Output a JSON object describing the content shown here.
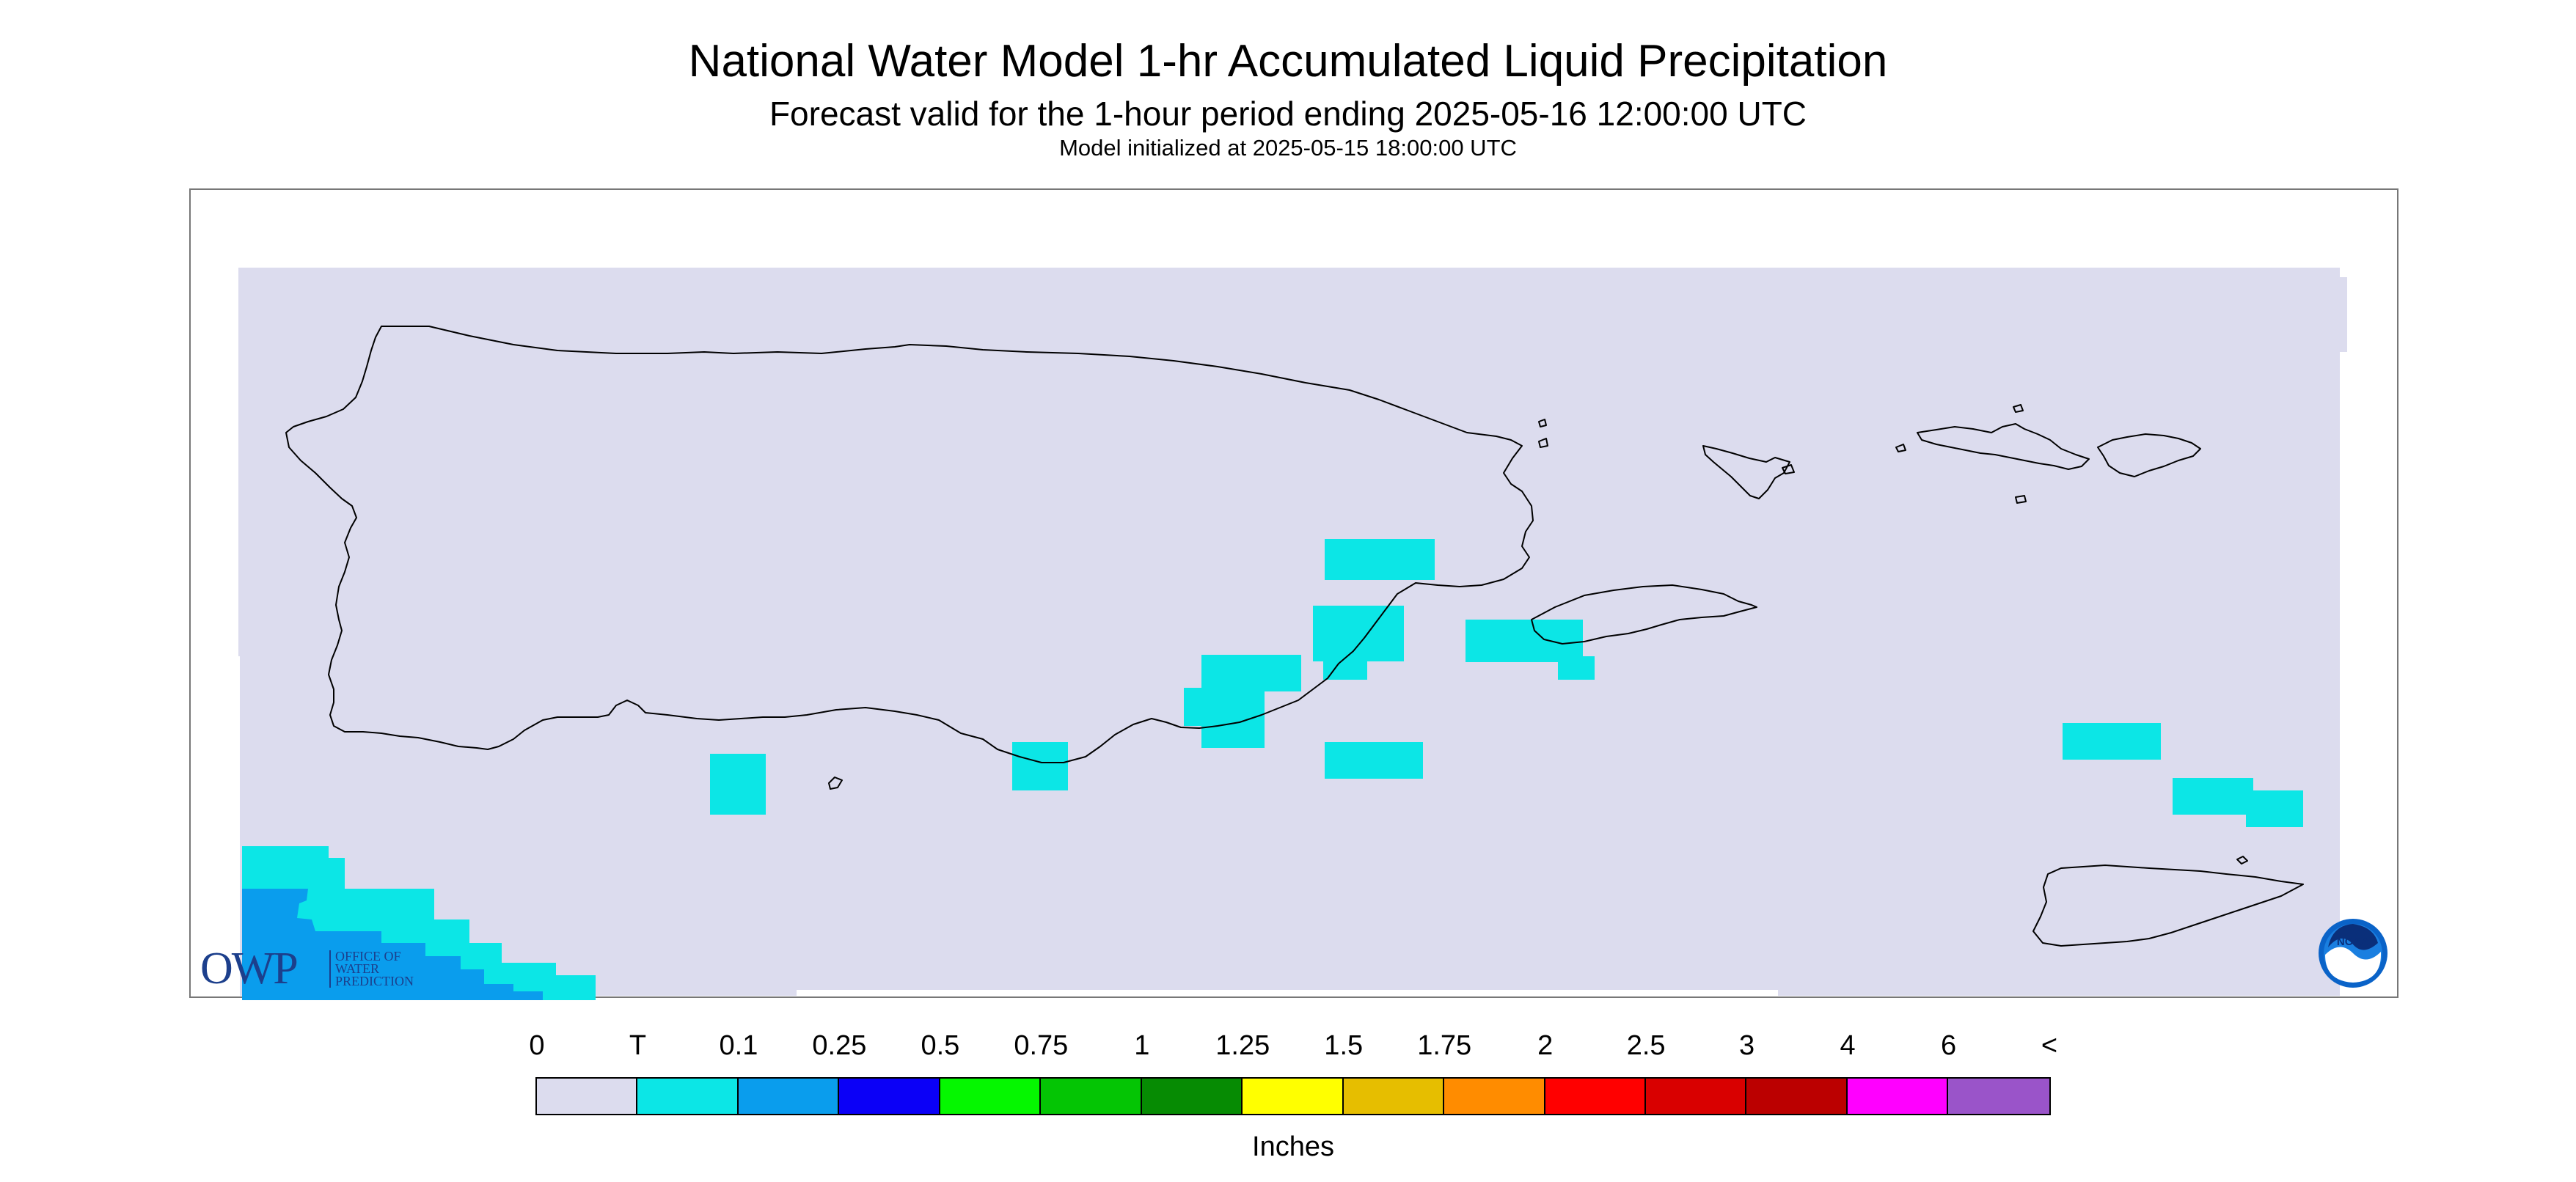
{
  "header": {
    "title": "National Water Model 1-hr Accumulated Liquid Precipitation",
    "subtitle": "Forecast valid for the 1-hour period ending 2025-05-16 12:00:00 UTC",
    "init_line": "Model initialized at 2025-05-15 18:00:00 UTC"
  },
  "map": {
    "background_color": "#dcdcee",
    "coastline_color": "#000000",
    "regions": [
      "Puerto Rico",
      "Vieques",
      "Culebra",
      "U.S. Virgin Islands (St. Thomas, St. John)",
      "St. Croix"
    ]
  },
  "logos": {
    "owp": {
      "letters": "OWP",
      "lines": [
        "OFFICE OF",
        "WATER",
        "PREDICTION"
      ]
    },
    "noaa": {
      "text": "NOAA"
    }
  },
  "legend": {
    "labels": [
      "0",
      "T",
      "0.1",
      "0.25",
      "0.5",
      "0.75",
      "1",
      "1.25",
      "1.5",
      "1.75",
      "2",
      "2.5",
      "3",
      "4",
      "6",
      "<"
    ],
    "colors": [
      "#dcdcee",
      "#0ce6e6",
      "#0a9ded",
      "#0b00f7",
      "#05f700",
      "#04c504",
      "#068b03",
      "#ffff00",
      "#e6be00",
      "#ff8c00",
      "#ff0000",
      "#d90000",
      "#bb0000",
      "#ff00ff",
      "#9a54c9"
    ],
    "units": "Inches"
  }
}
